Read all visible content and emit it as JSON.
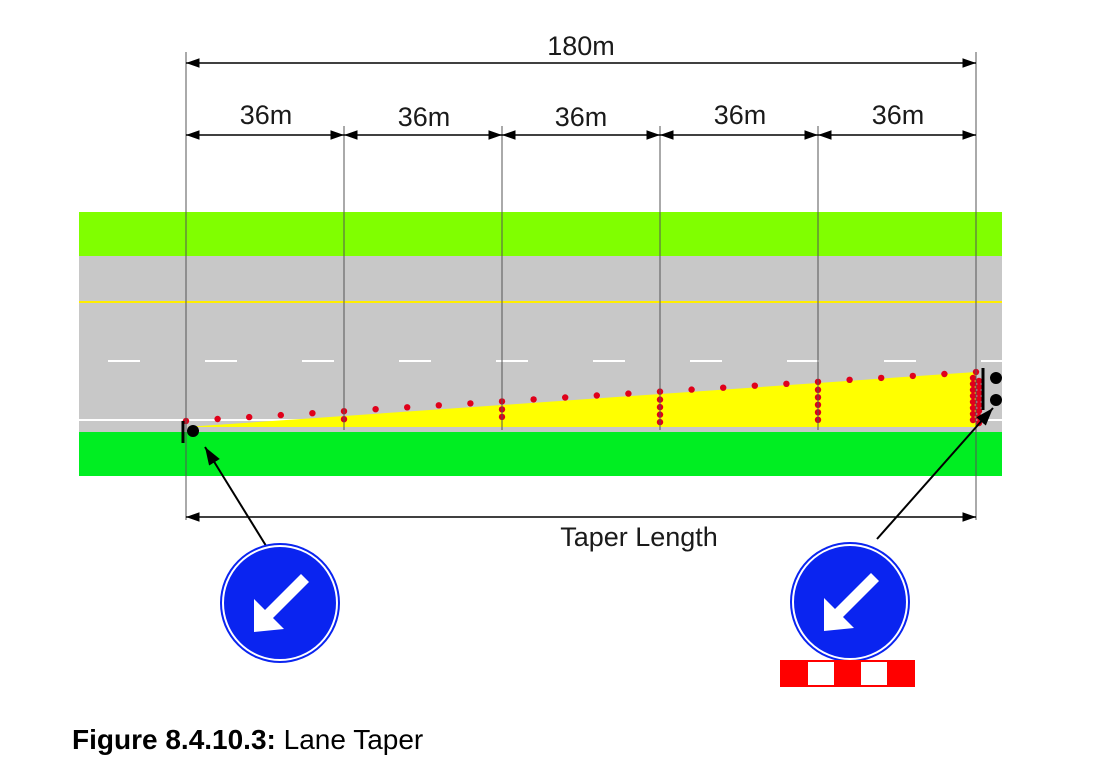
{
  "diagram": {
    "total_length_label": "180m",
    "segment_labels": [
      "36m",
      "36m",
      "36m",
      "36m",
      "36m"
    ],
    "taper_label": "Taper Length"
  },
  "caption": {
    "figure_number": "Figure 8.4.10.3:",
    "title": "Lane Taper"
  },
  "colors": {
    "verge": "#80ff00",
    "verge_low": "#00ee22",
    "road": "#c8c8c8",
    "taper": "#ffff00",
    "cone": "#e0001a",
    "sign_blue": "#0a24f0",
    "plate_red": "#ff0000"
  },
  "icons": [
    "keep-left-sign-icon",
    "keep-left-sign-icon",
    "red-white-plate-icon"
  ]
}
